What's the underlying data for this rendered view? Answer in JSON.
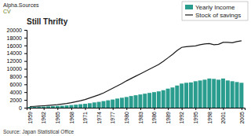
{
  "chart_data": {
    "type": "bar",
    "title": "Still Thrifty",
    "annotations": [
      "Alpha.Sources",
      "CV",
      "Source: Japan Statistical Office"
    ],
    "x": [
      1959,
      1960,
      1961,
      1962,
      1963,
      1964,
      1965,
      1966,
      1967,
      1968,
      1969,
      1970,
      1971,
      1972,
      1973,
      1974,
      1975,
      1976,
      1977,
      1978,
      1979,
      1980,
      1981,
      1982,
      1983,
      1984,
      1985,
      1986,
      1987,
      1988,
      1989,
      1990,
      1991,
      1992,
      1993,
      1994,
      1995,
      1996,
      1997,
      1998,
      1999,
      2000,
      2001,
      2002,
      2003,
      2004,
      2005
    ],
    "series": [
      {
        "name": "Yearly Income",
        "type": "bar",
        "color": "#2a9d8f",
        "values": [
          200,
          220,
          260,
          300,
          340,
          390,
          450,
          510,
          580,
          680,
          780,
          900,
          1000,
          1150,
          1350,
          1500,
          1700,
          1900,
          2100,
          2350,
          2550,
          2750,
          3000,
          3200,
          3400,
          3600,
          3800,
          4000,
          4200,
          4500,
          4900,
          5200,
          5700,
          6200,
          6400,
          6500,
          6800,
          7000,
          7200,
          7500,
          7400,
          7200,
          7500,
          7000,
          6800,
          6600,
          6400
        ]
      },
      {
        "name": "Stock of savings",
        "type": "line",
        "color": "#1a1a1a",
        "values": [
          300,
          350,
          420,
          500,
          580,
          680,
          800,
          950,
          1100,
          1300,
          1550,
          1800,
          2100,
          2500,
          2900,
          3300,
          3800,
          4400,
          5000,
          5600,
          6200,
          6900,
          7500,
          8100,
          8700,
          9300,
          9900,
          10500,
          11100,
          11900,
          12800,
          13700,
          14700,
          15500,
          15700,
          15800,
          15900,
          16200,
          16400,
          16500,
          16200,
          16300,
          16800,
          16800,
          16700,
          17000,
          17200
        ]
      }
    ],
    "xlim": [
      1958.3,
      2005.7
    ],
    "xticks": [
      1959,
      1962,
      1965,
      1968,
      1971,
      1974,
      1977,
      1980,
      1983,
      1986,
      1989,
      1992,
      1995,
      1998,
      2001,
      2005
    ],
    "ylim": [
      0,
      20000
    ],
    "yticks": [
      0,
      2000,
      4000,
      6000,
      8000,
      10000,
      12000,
      14000,
      16000,
      18000,
      20000
    ],
    "grid": false,
    "legend": "upper right"
  }
}
